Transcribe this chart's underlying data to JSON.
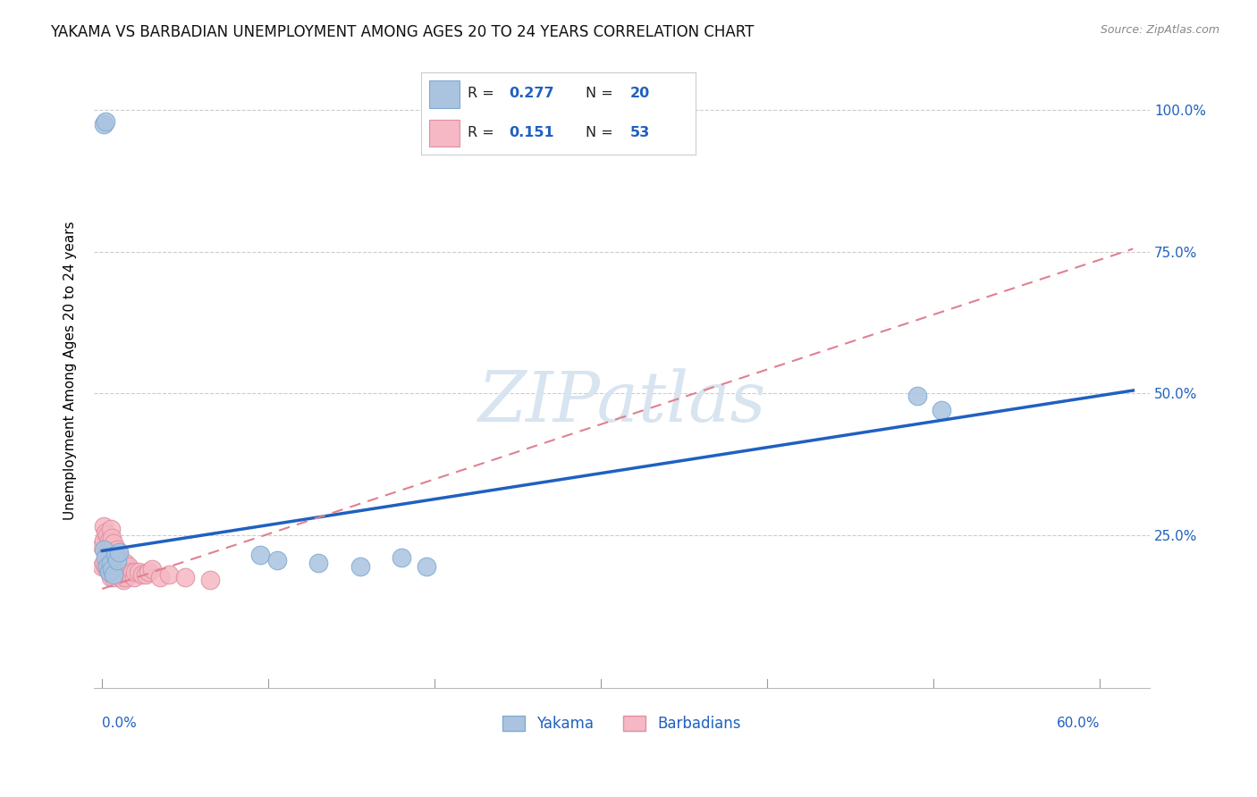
{
  "title": "YAKAMA VS BARBADIAN UNEMPLOYMENT AMONG AGES 20 TO 24 YEARS CORRELATION CHART",
  "source": "Source: ZipAtlas.com",
  "xlim": [
    -0.005,
    0.63
  ],
  "ylim": [
    -0.02,
    1.1
  ],
  "ylabel": "Unemployment Among Ages 20 to 24 years",
  "yakama_R": 0.277,
  "yakama_N": 20,
  "barbadian_R": 0.151,
  "barbadian_N": 53,
  "yakama_color": "#aac4e0",
  "barbadian_color": "#f5b8c4",
  "line_yakama_color": "#2060c0",
  "line_barbadian_color": "#e08090",
  "text_blue": "#2060c0",
  "text_black": "#222222",
  "watermark_color": "#d8e4f0",
  "background_color": "#ffffff",
  "grid_color": "#cccccc",
  "yakama_x": [
    0.001,
    0.002,
    0.003,
    0.004,
    0.005,
    0.006,
    0.007,
    0.008,
    0.009,
    0.01,
    0.095,
    0.105,
    0.13,
    0.155,
    0.18,
    0.195,
    0.49,
    0.505,
    0.001,
    0.002
  ],
  "yakama_y": [
    0.225,
    0.21,
    0.195,
    0.185,
    0.2,
    0.19,
    0.18,
    0.215,
    0.205,
    0.22,
    0.215,
    0.205,
    0.2,
    0.195,
    0.21,
    0.195,
    0.495,
    0.47,
    0.975,
    0.98
  ],
  "barbadian_x": [
    0.0,
    0.0,
    0.001,
    0.001,
    0.001,
    0.002,
    0.002,
    0.002,
    0.003,
    0.003,
    0.003,
    0.004,
    0.004,
    0.004,
    0.005,
    0.005,
    0.005,
    0.005,
    0.006,
    0.006,
    0.006,
    0.007,
    0.007,
    0.007,
    0.008,
    0.008,
    0.009,
    0.009,
    0.01,
    0.01,
    0.011,
    0.011,
    0.012,
    0.012,
    0.013,
    0.013,
    0.014,
    0.014,
    0.015,
    0.016,
    0.017,
    0.018,
    0.019,
    0.02,
    0.022,
    0.024,
    0.026,
    0.028,
    0.03,
    0.035,
    0.04,
    0.05,
    0.065
  ],
  "barbadian_y": [
    0.23,
    0.195,
    0.265,
    0.24,
    0.2,
    0.255,
    0.225,
    0.195,
    0.25,
    0.22,
    0.19,
    0.24,
    0.215,
    0.185,
    0.26,
    0.235,
    0.205,
    0.175,
    0.245,
    0.215,
    0.185,
    0.235,
    0.205,
    0.175,
    0.215,
    0.185,
    0.225,
    0.195,
    0.215,
    0.185,
    0.205,
    0.175,
    0.2,
    0.175,
    0.195,
    0.17,
    0.2,
    0.175,
    0.185,
    0.195,
    0.18,
    0.185,
    0.175,
    0.185,
    0.185,
    0.18,
    0.18,
    0.185,
    0.19,
    0.175,
    0.18,
    0.175,
    0.17
  ],
  "yakama_line_x0": 0.0,
  "yakama_line_y0": 0.222,
  "yakama_line_x1": 0.62,
  "yakama_line_y1": 0.505,
  "barb_line_x0": 0.0,
  "barb_line_y0": 0.155,
  "barb_line_x1": 0.62,
  "barb_line_y1": 0.755,
  "ytick_positions": [
    0.0,
    0.25,
    0.5,
    0.75,
    1.0
  ],
  "ytick_labels_right": [
    "",
    "25.0%",
    "50.0%",
    "75.0%",
    "100.0%"
  ],
  "xtick_left_label": "0.0%",
  "xtick_right_label": "60.0%"
}
